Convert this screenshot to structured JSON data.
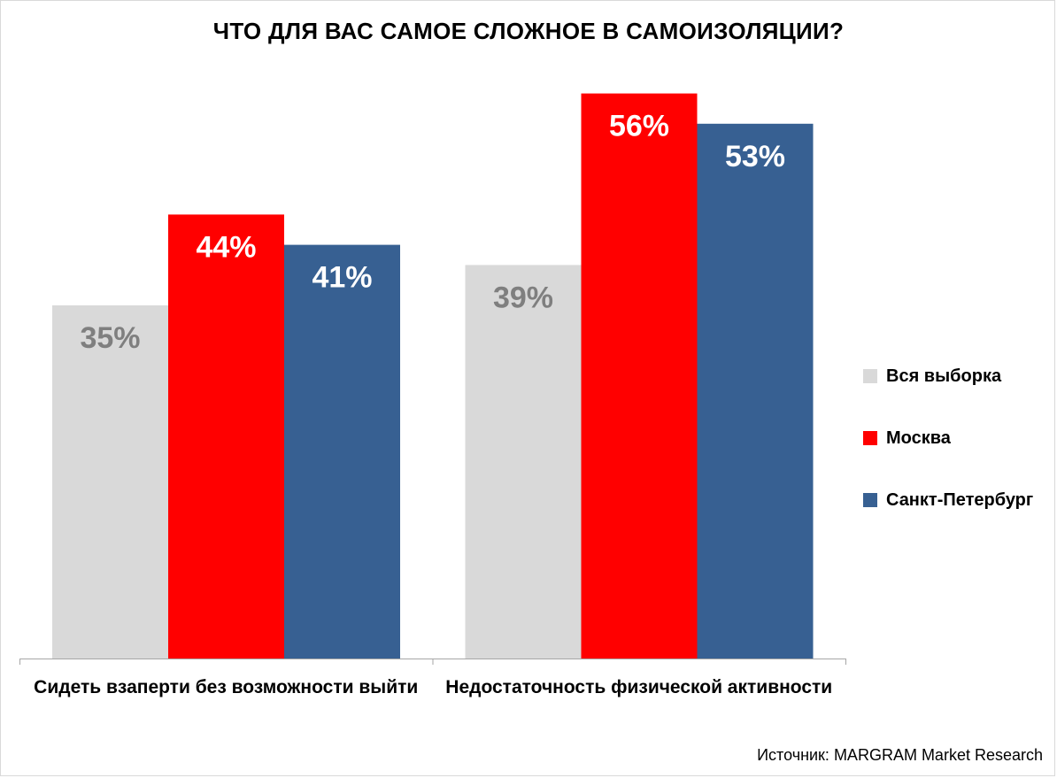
{
  "title": "ЧТО ДЛЯ ВАС САМОЕ СЛОЖНОЕ В САМОИЗОЛЯЦИИ?",
  "source": "Источник: MARGRAM Market Research",
  "chart_data": {
    "type": "bar",
    "title": "ЧТО ДЛЯ ВАС САМОЕ СЛОЖНОЕ В САМОИЗОЛЯЦИИ?",
    "categories": [
      "Сидеть взаперти без возможности выйти",
      "Недостаточность физической активности"
    ],
    "series": [
      {
        "name": "Вся выборка",
        "values": [
          35,
          39
        ],
        "labels": [
          "35%",
          "39%"
        ],
        "color": "#d9d9d9",
        "label_color": "#7f7f7f"
      },
      {
        "name": "Москва",
        "values": [
          44,
          56
        ],
        "labels": [
          "44%",
          "56%"
        ],
        "color": "#ff0000",
        "label_color": "#ffffff"
      },
      {
        "name": "Санкт-Петербург",
        "values": [
          41,
          53
        ],
        "labels": [
          "41%",
          "53%"
        ],
        "color": "#376092",
        "label_color": "#ffffff"
      }
    ],
    "ylim": [
      0,
      60
    ],
    "grid": false,
    "legend_position": "right"
  }
}
